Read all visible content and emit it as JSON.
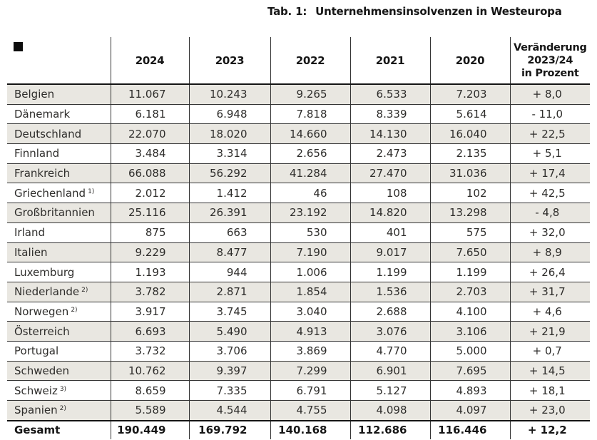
{
  "title": {
    "prefix": "Tab. 1:",
    "text": "Unternehmensinsolvenzen in Westeuropa"
  },
  "table": {
    "corner_icon": "black-square",
    "year_headers": [
      "2024",
      "2023",
      "2022",
      "2021",
      "2020"
    ],
    "change_header_lines": [
      "Veränderung",
      "2023/24",
      "in Prozent"
    ],
    "rows": [
      {
        "country": "Belgien",
        "footnote": "",
        "values": [
          "11.067",
          "10.243",
          "9.265",
          "6.533",
          "7.203"
        ],
        "change": "+ 8,0"
      },
      {
        "country": "Dänemark",
        "footnote": "",
        "values": [
          "6.181",
          "6.948",
          "7.818",
          "8.339",
          "5.614"
        ],
        "change": "- 11,0"
      },
      {
        "country": "Deutschland",
        "footnote": "",
        "values": [
          "22.070",
          "18.020",
          "14.660",
          "14.130",
          "16.040"
        ],
        "change": "+ 22,5"
      },
      {
        "country": "Finnland",
        "footnote": "",
        "values": [
          "3.484",
          "3.314",
          "2.656",
          "2.473",
          "2.135"
        ],
        "change": "+ 5,1"
      },
      {
        "country": "Frankreich",
        "footnote": "",
        "values": [
          "66.088",
          "56.292",
          "41.284",
          "27.470",
          "31.036"
        ],
        "change": "+ 17,4"
      },
      {
        "country": "Griechenland",
        "footnote": "1)",
        "values": [
          "2.012",
          "1.412",
          "46",
          "108",
          "102"
        ],
        "change": "+ 42,5"
      },
      {
        "country": "Großbritannien",
        "footnote": "",
        "values": [
          "25.116",
          "26.391",
          "23.192",
          "14.820",
          "13.298"
        ],
        "change": "- 4,8"
      },
      {
        "country": "Irland",
        "footnote": "",
        "values": [
          "875",
          "663",
          "530",
          "401",
          "575"
        ],
        "change": "+ 32,0"
      },
      {
        "country": "Italien",
        "footnote": "",
        "values": [
          "9.229",
          "8.477",
          "7.190",
          "9.017",
          "7.650"
        ],
        "change": "+ 8,9"
      },
      {
        "country": "Luxemburg",
        "footnote": "",
        "values": [
          "1.193",
          "944",
          "1.006",
          "1.199",
          "1.199"
        ],
        "change": "+ 26,4"
      },
      {
        "country": "Niederlande",
        "footnote": "2)",
        "values": [
          "3.782",
          "2.871",
          "1.854",
          "1.536",
          "2.703"
        ],
        "change": "+ 31,7"
      },
      {
        "country": "Norwegen",
        "footnote": "2)",
        "values": [
          "3.917",
          "3.745",
          "3.040",
          "2.688",
          "4.100"
        ],
        "change": "+ 4,6"
      },
      {
        "country": "Österreich",
        "footnote": "",
        "values": [
          "6.693",
          "5.490",
          "4.913",
          "3.076",
          "3.106"
        ],
        "change": "+ 21,9"
      },
      {
        "country": "Portugal",
        "footnote": "",
        "values": [
          "3.732",
          "3.706",
          "3.869",
          "4.770",
          "5.000"
        ],
        "change": "+ 0,7"
      },
      {
        "country": "Schweden",
        "footnote": "",
        "values": [
          "10.762",
          "9.397",
          "7.299",
          "6.901",
          "7.695"
        ],
        "change": "+ 14,5"
      },
      {
        "country": "Schweiz",
        "footnote": "3)",
        "values": [
          "8.659",
          "7.335",
          "6.791",
          "5.127",
          "4.893"
        ],
        "change": "+ 18,1"
      },
      {
        "country": "Spanien",
        "footnote": "2)",
        "values": [
          "5.589",
          "4.544",
          "4.755",
          "4.098",
          "4.097"
        ],
        "change": "+ 23,0"
      }
    ],
    "total_row": {
      "country": "Gesamt",
      "values": [
        "190.449",
        "169.792",
        "140.168",
        "112.686",
        "116.446"
      ],
      "change": "+ 12,2"
    }
  },
  "colors": {
    "row_shade": "#e9e7e1",
    "thin_border": "#343434",
    "thick_border": "#141414",
    "text": "#2e2d2b",
    "heading_text": "#161616",
    "page_bg": "#ffffff",
    "square_icon": "#0d0d0d"
  }
}
